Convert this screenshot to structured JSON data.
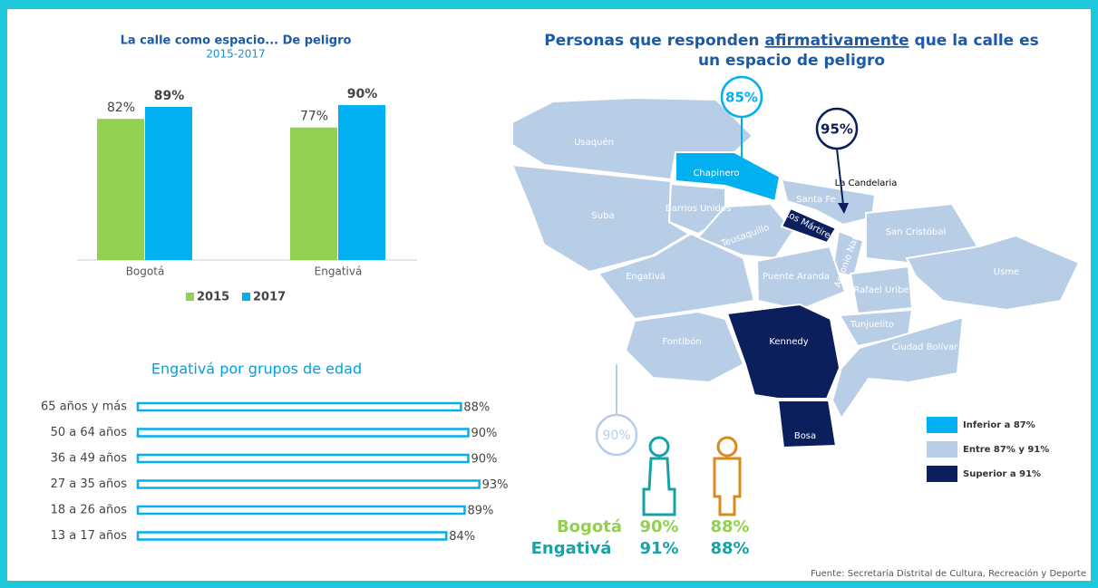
{
  "chart_data": [
    {
      "type": "bar",
      "title": "La calle como espacio... De peligro",
      "subtitle": "2015-2017",
      "categories": [
        "Bogotá",
        "Engativá"
      ],
      "series": [
        {
          "name": "2015",
          "color": "#92d050",
          "values": [
            82,
            77
          ],
          "value_labels": [
            "82%",
            "77%"
          ]
        },
        {
          "name": "2017",
          "color": "#00b0f0",
          "values": [
            89,
            90
          ],
          "value_labels": [
            "89%",
            "90%"
          ]
        }
      ],
      "ylim": [
        0,
        100
      ],
      "legend": "bottom"
    },
    {
      "type": "hbar",
      "title": "Engativá por grupos de edad",
      "categories": [
        "65 años y más",
        "50 a 64 años",
        "36 a 49 años",
        "27 a 35 años",
        "18 a 26 años",
        "13 a 17 años"
      ],
      "values": [
        88,
        90,
        90,
        93,
        89,
        84
      ],
      "value_labels": [
        "88%",
        "90%",
        "90%",
        "93%",
        "89%",
        "84%"
      ],
      "color": "#00b0f0",
      "xlim": [
        0,
        100
      ]
    }
  ],
  "map": {
    "title": [
      "Personas que responden ",
      "afirmativamente",
      " que la calle es",
      "un espacio de peligro"
    ],
    "localities": [
      "Usaquén",
      "Chapinero",
      "La Candelaria",
      "Santa Fe",
      "Barrios Unidos",
      "Suba",
      "Los Mártires",
      "Teusaquillo",
      "Antonio Nariño",
      "San Cristóbal",
      "Engativá",
      "Puente Aranda",
      "Rafael Uribe",
      "Usme",
      "Tunjuelito",
      "Kennedy",
      "Fontibón",
      "Ciudad Bolívar",
      "Bosa"
    ],
    "callouts": [
      "85%",
      "95%",
      "90%"
    ],
    "legend": [
      "Inferior a 87%",
      "Entre 87% y 91%",
      "Superior a 91%"
    ]
  },
  "gender": {
    "rows": [
      {
        "label": "Bogotá",
        "values": [
          "90%",
          "88%"
        ]
      },
      {
        "label": "Engativá",
        "values": [
          "91%",
          "88%"
        ]
      }
    ]
  },
  "source": "Fuente: Secretaría Distrital de Cultura, Recreación y Deporte"
}
